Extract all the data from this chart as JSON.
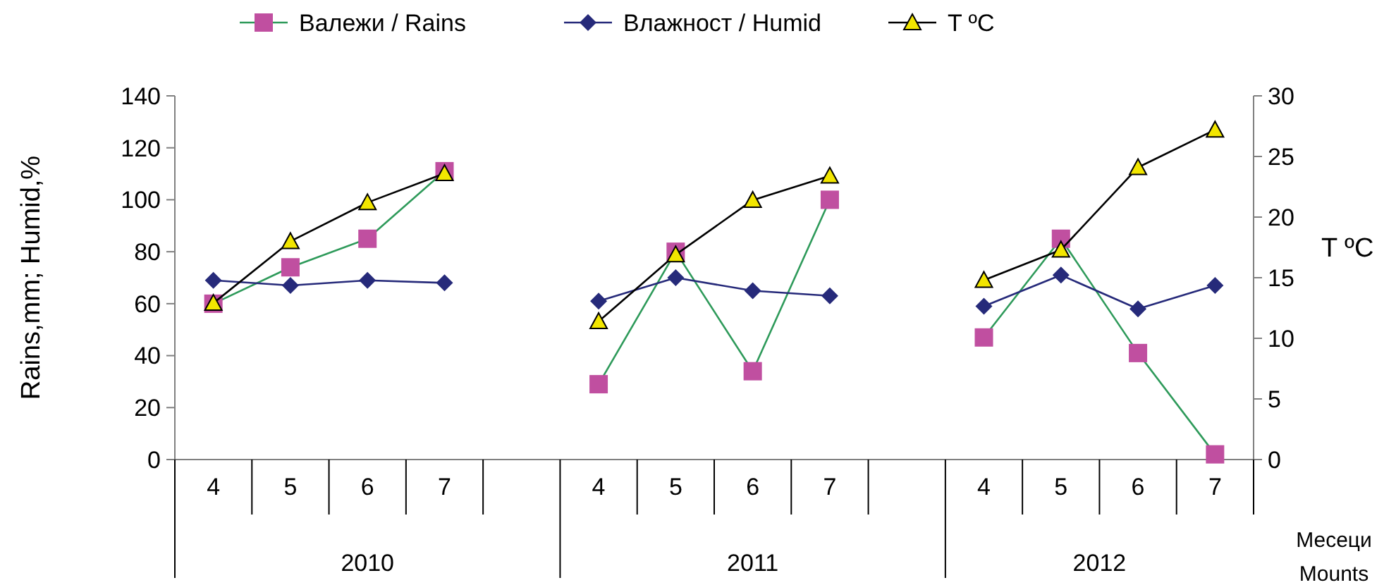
{
  "chart_data": {
    "type": "line",
    "xlabel": "Месеци\nMounts",
    "ylabel": "Rains,mm; Humid,%",
    "y2label": "T ºC",
    "categories": [
      "4",
      "5",
      "6",
      "7",
      null,
      "4",
      "5",
      "6",
      "7",
      null,
      "4",
      "5",
      "6",
      "7"
    ],
    "annotations": [
      "2010",
      "2011",
      "2012"
    ],
    "series": [
      {
        "name": "Валежи / Rains",
        "color": "#2e9a5a",
        "colors": [
          "#c04fa0",
          "#c04fa0",
          "#c04fa0",
          "#c04fa0",
          null,
          "#c04fa0",
          "#c04fa0",
          "#c04fa0",
          "#c04fa0",
          null,
          "#c04fa0",
          "#c04fa0",
          "#c04fa0",
          "#c04fa0"
        ],
        "marker": "square",
        "values": [
          60,
          74,
          85,
          111,
          null,
          29,
          80,
          34,
          100,
          null,
          47,
          85,
          41,
          2
        ]
      },
      {
        "name": "Влажност / Humid",
        "color": "#262a7a",
        "marker": "diamond",
        "values": [
          69,
          67,
          69,
          68,
          null,
          61,
          70,
          65,
          63,
          null,
          59,
          71,
          58,
          67
        ]
      },
      {
        "name": "T ºC",
        "color": "#000000",
        "colors": [
          "#f2e600",
          "#f2e600",
          "#f2e600",
          "#f2e600",
          null,
          "#f2e600",
          "#f2e600",
          "#f2e600",
          "#f2e600",
          null,
          "#f2e600",
          "#f2e600",
          "#f2e600",
          "#f2e600"
        ],
        "marker": "triangle",
        "axis": "y2",
        "values": [
          12.9,
          18,
          21.2,
          23.6,
          null,
          11.4,
          16.9,
          21.4,
          23.4,
          null,
          14.8,
          17.3,
          24.1,
          27.2
        ]
      }
    ],
    "ylim": [
      0,
      140
    ],
    "yticks": [
      0,
      20,
      40,
      60,
      80,
      100,
      120,
      140
    ],
    "y2lim": [
      0,
      30
    ],
    "y2ticks": [
      0,
      5,
      10,
      15,
      20,
      25,
      30
    ],
    "grid": false,
    "legend": "top"
  }
}
